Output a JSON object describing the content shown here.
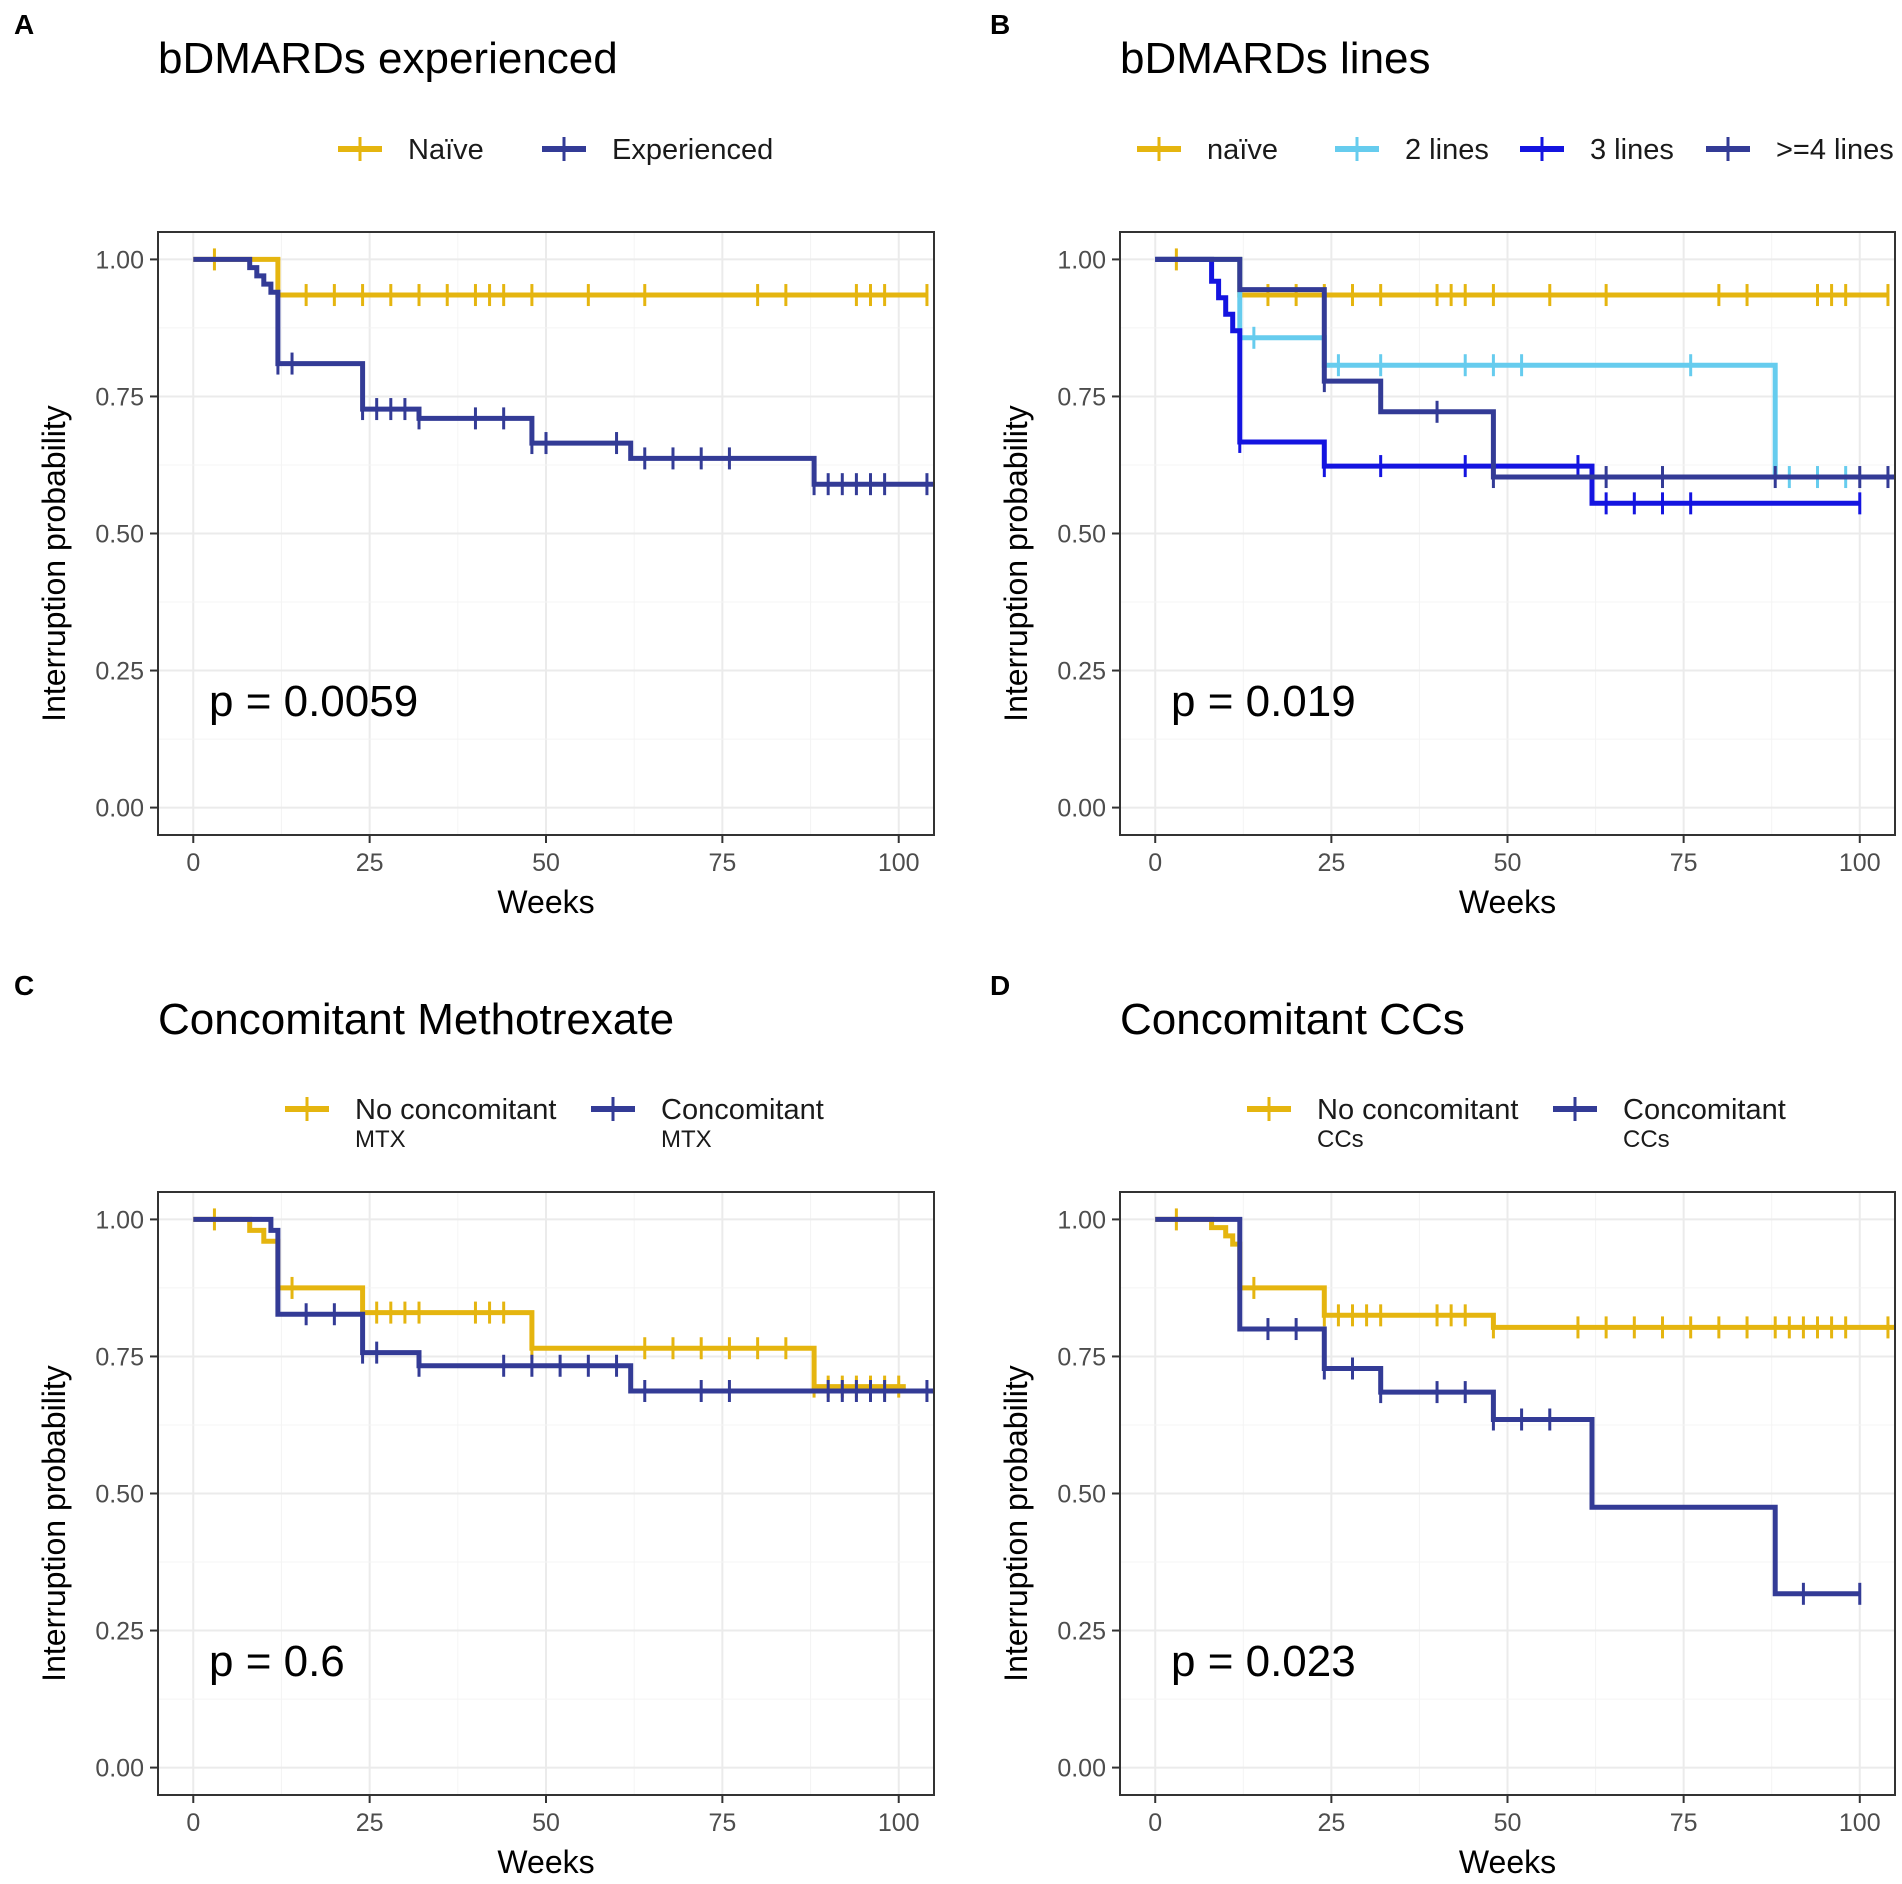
{
  "figure": {
    "panels": [
      {
        "letter": "A",
        "title": "bDMARDs experienced",
        "p_value": "p = 0.0059",
        "xlabel": "Weeks",
        "ylabel": "Interruption probability",
        "legend": [
          {
            "label": "Naïve",
            "sub": "",
            "color": "#E5B50F"
          },
          {
            "label": "Experienced",
            "sub": "",
            "color": "#333B96"
          }
        ]
      },
      {
        "letter": "B",
        "title": "bDMARDs lines",
        "p_value": "p = 0.019",
        "xlabel": "Weeks",
        "ylabel": "Interruption probability",
        "legend": [
          {
            "label": "naïve",
            "sub": "",
            "color": "#E5B50F"
          },
          {
            "label": "2 lines",
            "sub": "",
            "color": "#66CCEE"
          },
          {
            "label": "3 lines",
            "sub": "",
            "color": "#1414E0"
          },
          {
            "label": ">=4 lines",
            "sub": "",
            "color": "#333B96"
          }
        ]
      },
      {
        "letter": "C",
        "title": "Concomitant Methotrexate",
        "p_value": "p = 0.6",
        "xlabel": "Weeks",
        "ylabel": "Interruption probability",
        "legend": [
          {
            "label": "No concomitant",
            "sub": "MTX",
            "color": "#E5B50F"
          },
          {
            "label": "Concomitant",
            "sub": "MTX",
            "color": "#333B96"
          }
        ]
      },
      {
        "letter": "D",
        "title": "Concomitant CCs",
        "p_value": "p = 0.023",
        "xlabel": "Weeks",
        "ylabel": "Interruption probability",
        "legend": [
          {
            "label": "No concomitant",
            "sub": "CCs",
            "color": "#E5B50F"
          },
          {
            "label": "Concomitant",
            "sub": "CCs",
            "color": "#333B96"
          }
        ]
      }
    ]
  },
  "chart_data": [
    {
      "type": "line",
      "title": "bDMARDs experienced",
      "xlabel": "Weeks",
      "ylabel": "Interruption probability",
      "xlim": [
        -5,
        105
      ],
      "ylim": [
        -0.05,
        1.05
      ],
      "xticks": [
        "0",
        "25",
        "50",
        "75",
        "100"
      ],
      "yticks": [
        "0.00",
        "0.25",
        "0.50",
        "0.75",
        "1.00"
      ],
      "annotation": "p = 0.0059",
      "series": [
        {
          "name": "Naïve",
          "color": "#E5B50F",
          "steps": [
            [
              0,
              1.0
            ],
            [
              12,
              0.935
            ],
            [
              104,
              0.935
            ]
          ],
          "censors": [
            3,
            12,
            16,
            20,
            24,
            28,
            32,
            36,
            40,
            42,
            44,
            48,
            56,
            64,
            80,
            84,
            94,
            96,
            98,
            104
          ]
        },
        {
          "name": "Experienced",
          "color": "#333B96",
          "steps": [
            [
              0,
              1.0
            ],
            [
              8,
              0.985
            ],
            [
              9,
              0.97
            ],
            [
              10,
              0.955
            ],
            [
              11,
              0.94
            ],
            [
              12,
              0.81
            ],
            [
              24,
              0.727
            ],
            [
              32,
              0.71
            ],
            [
              48,
              0.665
            ],
            [
              62,
              0.637
            ],
            [
              88,
              0.59
            ],
            [
              105,
              0.59
            ]
          ],
          "censors": [
            12,
            14,
            24,
            26,
            28,
            30,
            32,
            40,
            44,
            48,
            50,
            60,
            64,
            68,
            72,
            76,
            88,
            90,
            92,
            94,
            96,
            98,
            104
          ]
        }
      ]
    },
    {
      "type": "line",
      "title": "bDMARDs lines",
      "xlabel": "Weeks",
      "ylabel": "Interruption probability",
      "xlim": [
        -5,
        105
      ],
      "ylim": [
        -0.05,
        1.05
      ],
      "xticks": [
        "0",
        "25",
        "50",
        "75",
        "100"
      ],
      "yticks": [
        "0.00",
        "0.25",
        "0.50",
        "0.75",
        "1.00"
      ],
      "annotation": "p = 0.019",
      "series": [
        {
          "name": "naïve",
          "color": "#E5B50F",
          "steps": [
            [
              0,
              1.0
            ],
            [
              12,
              0.935
            ],
            [
              104,
              0.935
            ]
          ],
          "censors": [
            3,
            12,
            16,
            20,
            24,
            28,
            32,
            40,
            42,
            44,
            48,
            56,
            64,
            80,
            84,
            94,
            96,
            98,
            104
          ]
        },
        {
          "name": "2 lines",
          "color": "#66CCEE",
          "steps": [
            [
              0,
              1.0
            ],
            [
              12,
              0.857
            ],
            [
              24,
              0.807
            ],
            [
              88,
              0.603
            ],
            [
              100,
              0.603
            ]
          ],
          "censors": [
            14,
            24,
            26,
            32,
            44,
            48,
            52,
            76,
            90,
            94,
            98
          ]
        },
        {
          "name": "3 lines",
          "color": "#1414E0",
          "steps": [
            [
              0,
              1.0
            ],
            [
              8,
              0.96
            ],
            [
              9,
              0.93
            ],
            [
              10,
              0.9
            ],
            [
              11,
              0.87
            ],
            [
              12,
              0.667
            ],
            [
              24,
              0.623
            ],
            [
              62,
              0.555
            ],
            [
              100,
              0.555
            ]
          ],
          "censors": [
            12,
            24,
            32,
            44,
            48,
            60,
            64,
            68,
            72,
            76,
            100
          ]
        },
        {
          "name": ">=4 lines",
          "color": "#333B96",
          "steps": [
            [
              0,
              1.0
            ],
            [
              12,
              0.945
            ],
            [
              24,
              0.778
            ],
            [
              32,
              0.722
            ],
            [
              48,
              0.603
            ],
            [
              105,
              0.603
            ]
          ],
          "censors": [
            24,
            40,
            48,
            64,
            72,
            88,
            100,
            104
          ]
        }
      ]
    },
    {
      "type": "line",
      "title": "Concomitant Methotrexate",
      "xlabel": "Weeks",
      "ylabel": "Interruption probability",
      "xlim": [
        -5,
        105
      ],
      "ylim": [
        -0.05,
        1.05
      ],
      "xticks": [
        "0",
        "25",
        "50",
        "75",
        "100"
      ],
      "yticks": [
        "0.00",
        "0.25",
        "0.50",
        "0.75",
        "1.00"
      ],
      "annotation": "p = 0.6",
      "series": [
        {
          "name": "No concomitant MTX",
          "color": "#E5B50F",
          "steps": [
            [
              0,
              1.0
            ],
            [
              8,
              0.98
            ],
            [
              10,
              0.96
            ],
            [
              12,
              0.875
            ],
            [
              24,
              0.83
            ],
            [
              48,
              0.765
            ],
            [
              88,
              0.695
            ],
            [
              101,
              0.695
            ]
          ],
          "censors": [
            3,
            12,
            14,
            24,
            26,
            28,
            30,
            32,
            40,
            42,
            44,
            48,
            64,
            68,
            72,
            76,
            80,
            84,
            88,
            90,
            92,
            94,
            96,
            98,
            100
          ]
        },
        {
          "name": "Concomitant MTX",
          "color": "#333B96",
          "steps": [
            [
              0,
              1.0
            ],
            [
              11,
              0.98
            ],
            [
              12,
              0.827
            ],
            [
              24,
              0.757
            ],
            [
              32,
              0.733
            ],
            [
              62,
              0.687
            ],
            [
              105,
              0.687
            ]
          ],
          "censors": [
            16,
            20,
            24,
            26,
            32,
            44,
            48,
            52,
            56,
            60,
            64,
            72,
            76,
            90,
            92,
            94,
            96,
            98,
            104
          ]
        }
      ]
    },
    {
      "type": "line",
      "title": "Concomitant CCs",
      "xlabel": "Weeks",
      "ylabel": "Interruption probability",
      "xlim": [
        -5,
        105
      ],
      "ylim": [
        -0.05,
        1.05
      ],
      "xticks": [
        "0",
        "25",
        "50",
        "75",
        "100"
      ],
      "yticks": [
        "0.00",
        "0.25",
        "0.50",
        "0.75",
        "1.00"
      ],
      "annotation": "p = 0.023",
      "series": [
        {
          "name": "No concomitant CCs",
          "color": "#E5B50F",
          "steps": [
            [
              0,
              1.0
            ],
            [
              8,
              0.985
            ],
            [
              10,
              0.97
            ],
            [
              11,
              0.955
            ],
            [
              12,
              0.875
            ],
            [
              24,
              0.825
            ],
            [
              48,
              0.803
            ],
            [
              105,
              0.803
            ]
          ],
          "censors": [
            3,
            12,
            14,
            24,
            26,
            28,
            30,
            32,
            40,
            42,
            44,
            48,
            60,
            64,
            68,
            72,
            76,
            80,
            84,
            88,
            90,
            92,
            94,
            96,
            98,
            104
          ]
        },
        {
          "name": "Concomitant CCs",
          "color": "#333B96",
          "steps": [
            [
              0,
              1.0
            ],
            [
              12,
              0.8
            ],
            [
              24,
              0.728
            ],
            [
              32,
              0.685
            ],
            [
              48,
              0.635
            ],
            [
              62,
              0.475
            ],
            [
              88,
              0.317
            ],
            [
              100,
              0.317
            ]
          ],
          "censors": [
            16,
            20,
            24,
            28,
            32,
            40,
            44,
            48,
            52,
            56,
            92,
            100
          ]
        }
      ]
    }
  ]
}
